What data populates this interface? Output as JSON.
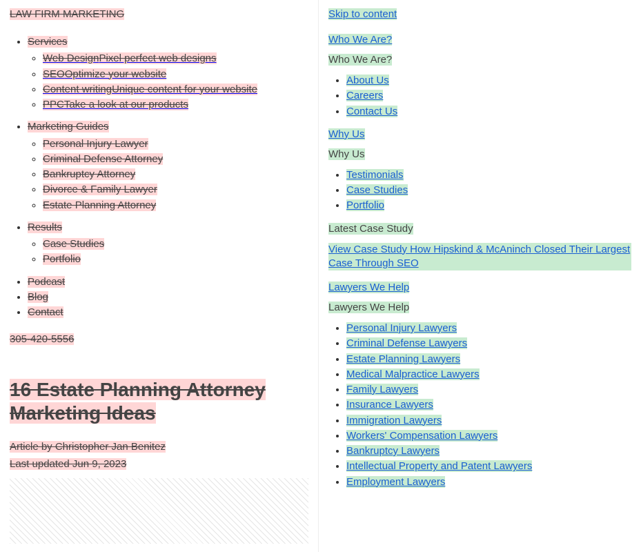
{
  "left": {
    "logo": "LAW FIRM MARKETING",
    "nav": {
      "services": {
        "label": "Services",
        "items": [
          {
            "title": "Web Design",
            "desc": "Pixel perfect web designs"
          },
          {
            "title": "SEO",
            "desc": "Optimize your website"
          },
          {
            "title": "Content writing",
            "desc": "Unique content for your website"
          },
          {
            "title": "PPC",
            "desc": "Take a look at our products"
          }
        ]
      },
      "guides": {
        "label": "Marketing Guides",
        "items": [
          "Personal Injury Lawyer",
          "Criminal Defense Attorney",
          "Bankruptcy Attorney",
          "Divorce & Family Lawyer",
          "Estate Planning Attorney"
        ]
      },
      "results": {
        "label": "Results",
        "items": [
          "Case Studies",
          "Portfolio"
        ]
      },
      "simple": [
        "Podcast",
        "Blog",
        "Contact"
      ]
    },
    "phone": "305-420-5556",
    "title": "16 Estate Planning Attorney Marketing Ideas",
    "byline": "Article by Christopher Jan Benitez",
    "updated": "Last updated Jun 9, 2023"
  },
  "right": {
    "skip": "Skip to content",
    "sections": {
      "who": {
        "link": "Who We Are?",
        "heading": "Who We Are?",
        "items": [
          "About Us",
          "Careers",
          "Contact Us"
        ]
      },
      "why": {
        "link": "Why Us",
        "heading": "Why Us",
        "items": [
          "Testimonials",
          "Case Studies",
          "Portfolio"
        ]
      },
      "caseStudy": {
        "heading": "Latest Case Study",
        "link": "View Case Study How Hipskind & McAninch Closed Their Largest Case Through SEO"
      },
      "lawyers": {
        "link": "Lawyers We Help",
        "heading": "Lawyers We Help",
        "items": [
          "Personal Injury Lawyers",
          "Criminal Defense Lawyers",
          "Estate Planning Lawyers",
          "Medical Malpractice Lawyers",
          "Family Lawyers",
          "Insurance Lawyers",
          "Immigration Lawyers",
          "Workers' Compensation Lawyers",
          "Bankruptcy Lawyers",
          "Intellectual Property and Patent Lawyers",
          "Employment Lawyers"
        ]
      }
    }
  }
}
